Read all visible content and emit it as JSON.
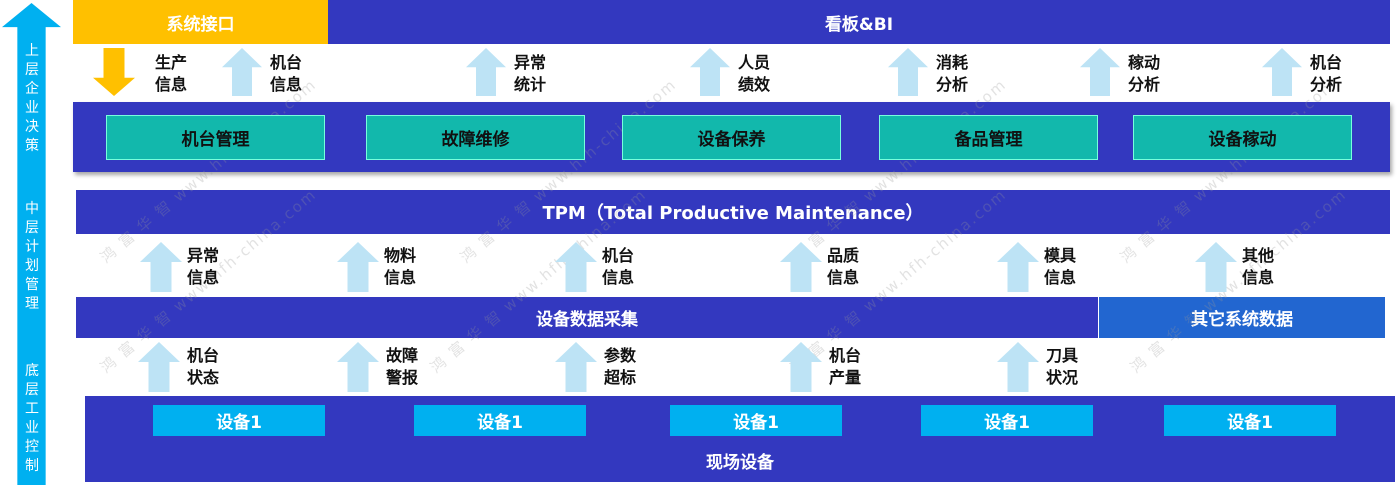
{
  "side_axis": {
    "labels": [
      "上层企业决策",
      "中层计划管理",
      "底层工业控制"
    ]
  },
  "top": {
    "interface": "系统接口",
    "dashboard": "看板&BI"
  },
  "top_flows": [
    {
      "direction": "down",
      "label": "生产\n信息"
    },
    {
      "direction": "up",
      "label": "机台\n信息"
    },
    {
      "direction": "up",
      "label": "异常\n统计"
    },
    {
      "direction": "up",
      "label": "人员\n绩效"
    },
    {
      "direction": "up",
      "label": "消耗\n分析"
    },
    {
      "direction": "up",
      "label": "稼动\n分析"
    },
    {
      "direction": "up",
      "label": "机台\n分析"
    }
  ],
  "modules": [
    "机台管理",
    "故障维修",
    "设备保养",
    "备品管理",
    "设备稼动"
  ],
  "tpm": "TPM（Total Productive Maintenance）",
  "mid_flows": [
    "异常\n信息",
    "物料\n信息",
    "机台\n信息",
    "品质\n信息",
    "模具\n信息",
    "其他\n信息"
  ],
  "collection": {
    "main": "设备数据采集",
    "other": "其它系统数据"
  },
  "bottom_flows": [
    "机台\n状态",
    "故障\n警报",
    "参数\n超标",
    "机台\n产量",
    "刀具\n状况"
  ],
  "devices": [
    "设备1",
    "设备1",
    "设备1",
    "设备1",
    "设备1"
  ],
  "field": "现场设备",
  "watermark": "鸿 富 华 智 www.hfh-china.com",
  "colors": {
    "primary": "#3338bf",
    "accent": "#ffc000",
    "module": "#12b8ac",
    "device": "#00b0f0",
    "flow_arrow": "#bde3f5",
    "other_data": "#2266d0"
  }
}
